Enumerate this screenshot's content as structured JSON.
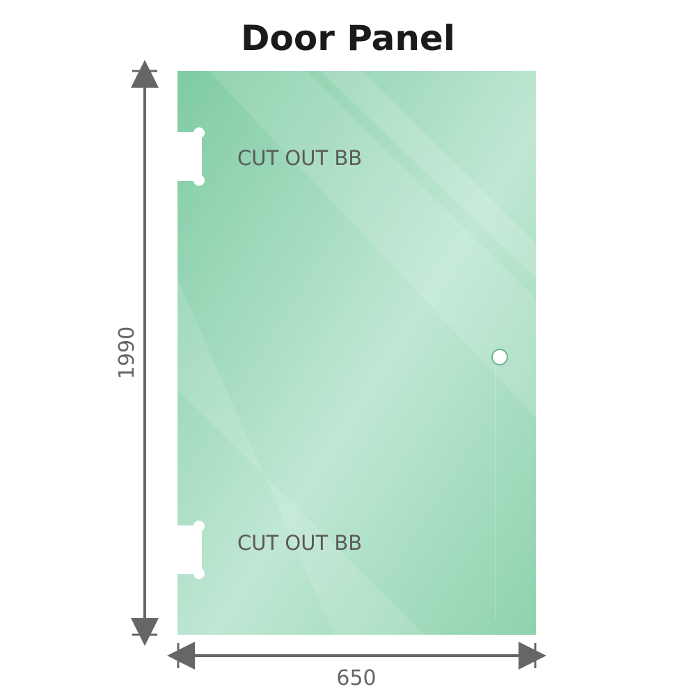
{
  "title": "Door Panel",
  "height_dimension": "1990",
  "width_dimension": "650",
  "cutouts": [
    {
      "label": "CUT OUT BB"
    },
    {
      "label": "CUT OUT BB"
    }
  ],
  "colors": {
    "glass": "#86cfa8",
    "glass_highlight": "#c2e9d6",
    "dimension_line": "#666666"
  }
}
